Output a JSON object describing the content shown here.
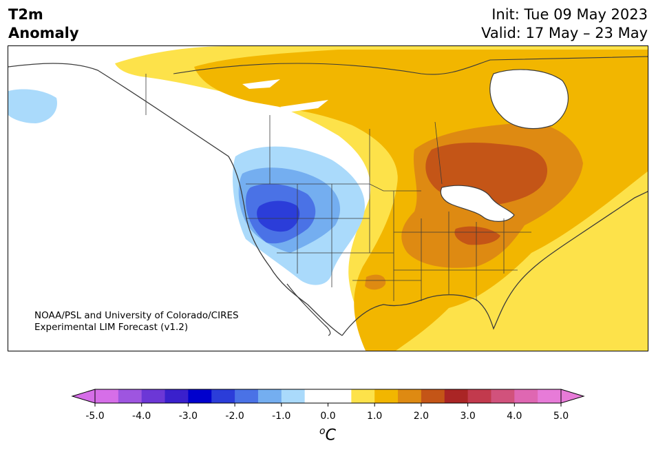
{
  "title": {
    "line1": "T2m",
    "line2": "Anomaly",
    "init": "Init: Tue 09 May 2023",
    "valid": "Valid: 17 May – 23 May"
  },
  "credit": {
    "line1": "NOAA/PSL and University of Colorado/CIRES",
    "line2": "Experimental LIM Forecast (v1.2)"
  },
  "colorbar": {
    "unit_base": "C",
    "unit_sup": "o",
    "ticks": [
      "-5.0",
      "-4.0",
      "-3.0",
      "-2.0",
      "-1.0",
      "0.0",
      "1.0",
      "2.0",
      "3.0",
      "4.0",
      "5.0"
    ],
    "tick_values": [
      -5,
      -4,
      -3,
      -2,
      -1,
      0,
      1,
      2,
      3,
      4,
      5
    ],
    "colors": [
      "#d66ee8",
      "#9e55e0",
      "#6c37d6",
      "#3a20cc",
      "#0000cd",
      "#2b3dd9",
      "#4a72e6",
      "#74aef0",
      "#aadafb",
      "#ffffff",
      "#ffffff",
      "#fde24a",
      "#f2b600",
      "#de8a12",
      "#c45517",
      "#aa2525",
      "#c23a4d",
      "#d1527c",
      "#df67b2",
      "#e77bd8"
    ],
    "under_color": "#d66ee8",
    "over_color": "#e77bd8"
  },
  "map": {
    "region": "North America",
    "variable": "2m temperature anomaly",
    "regions": [
      {
        "label": "cool",
        "color": "#aadafb"
      },
      {
        "label": "warm",
        "color": "#fde24a"
      }
    ]
  }
}
